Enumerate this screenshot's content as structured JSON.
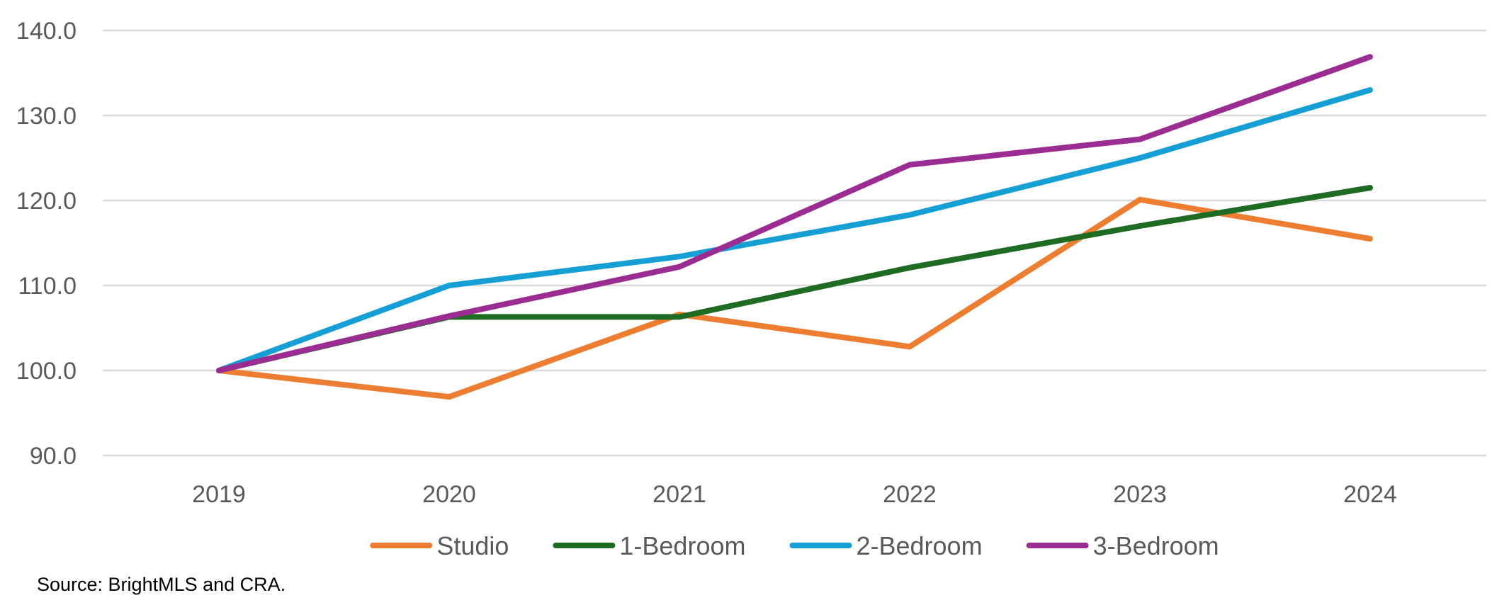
{
  "chart_data": {
    "type": "line",
    "categories": [
      "2019",
      "2020",
      "2021",
      "2022",
      "2023",
      "2024"
    ],
    "ylim": [
      90,
      140
    ],
    "yticks": [
      90,
      100,
      110,
      120,
      130,
      140
    ],
    "ytick_labels": [
      "90.0",
      "100.0",
      "110.0",
      "120.0",
      "130.0",
      "140.0"
    ],
    "grid": true,
    "legend_position": "bottom",
    "series": [
      {
        "name": "Studio",
        "color": "#ED7D31",
        "values": [
          100.0,
          96.9,
          106.6,
          102.8,
          120.1,
          115.5
        ]
      },
      {
        "name": "1-Bedroom",
        "color": "#1E6B24",
        "values": [
          100.0,
          106.3,
          106.3,
          112.1,
          117.0,
          121.5
        ]
      },
      {
        "name": "2-Bedroom",
        "color": "#159FD5",
        "values": [
          100.0,
          110.0,
          113.4,
          118.3,
          125.0,
          133.0
        ]
      },
      {
        "name": "3-Bedroom",
        "color": "#9B2D92",
        "values": [
          100.0,
          106.4,
          112.2,
          124.2,
          127.2,
          136.9
        ]
      }
    ]
  },
  "source_note": "Source: BrightMLS and CRA."
}
